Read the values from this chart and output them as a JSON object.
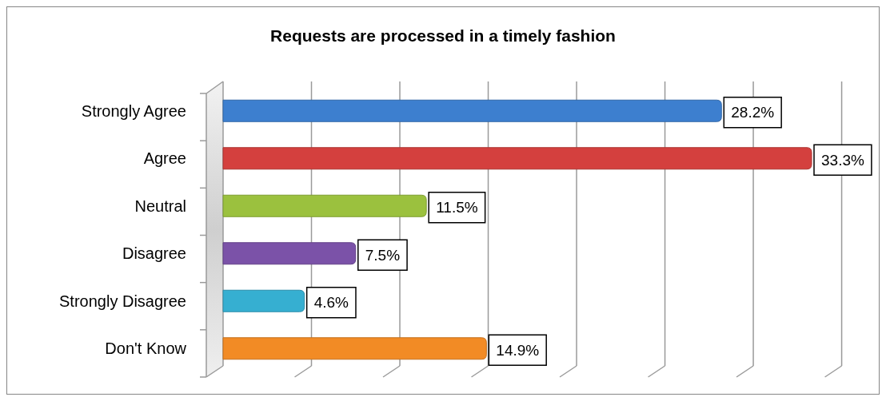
{
  "chart_data": {
    "type": "bar",
    "orientation": "horizontal",
    "title": "Requests are processed in a timely fashion",
    "categories": [
      "Strongly Agree",
      "Agree",
      "Neutral",
      "Disagree",
      "Strongly Disagree",
      "Don't Know"
    ],
    "values": [
      28.2,
      33.3,
      11.5,
      7.5,
      4.6,
      14.9
    ],
    "colors": [
      "#3d7fcf",
      "#d4403e",
      "#9bc13e",
      "#7b52a8",
      "#36afd1",
      "#f28b25"
    ],
    "value_labels": [
      "28.2%",
      "33.3%",
      "11.5%",
      "7.5%",
      "4.6%",
      "14.9%"
    ],
    "grid": "x",
    "tick_labels": "y"
  }
}
